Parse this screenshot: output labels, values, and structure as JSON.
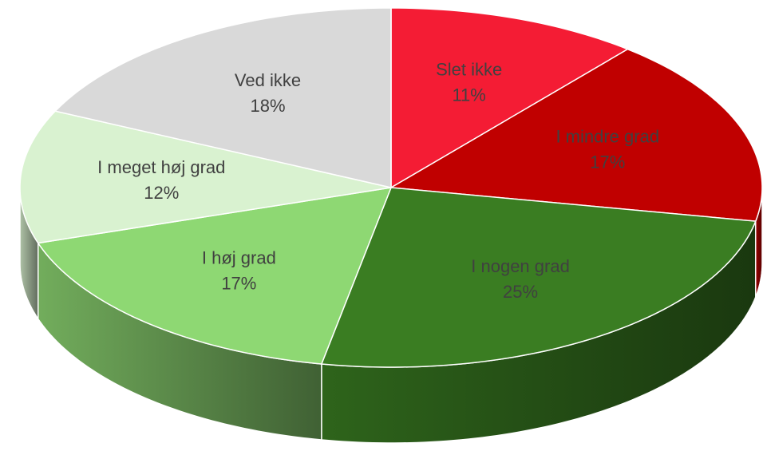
{
  "chart_data": {
    "type": "pie3d",
    "categories": [
      "Slet ikke",
      "I mindre grad",
      "I nogen grad",
      "I høj grad",
      "I meget høj grad",
      "Ved ikke"
    ],
    "values": [
      11,
      17,
      25,
      17,
      12,
      18
    ],
    "value_labels": [
      "11%",
      "17%",
      "25%",
      "17%",
      "12%",
      "18%"
    ],
    "colors": [
      "#f41c34",
      "#c00000",
      "#3a7d22",
      "#8ed873",
      "#d9f2d0",
      "#d9d9d9"
    ]
  }
}
